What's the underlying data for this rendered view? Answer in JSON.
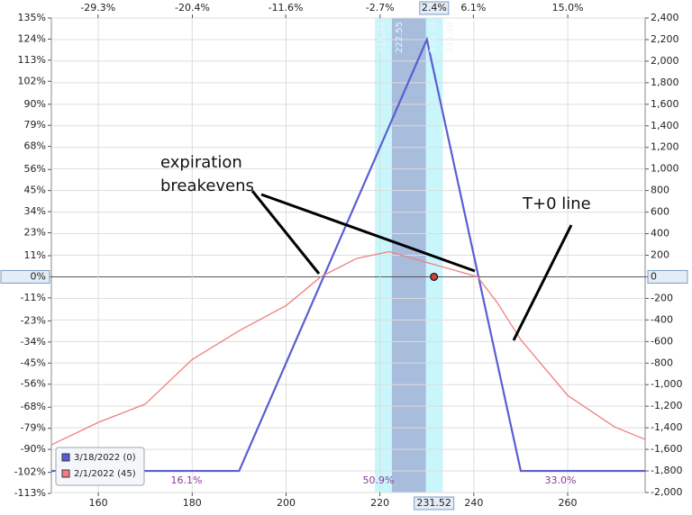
{
  "chart_data": {
    "type": "line",
    "xlim": [
      150,
      276.5
    ],
    "xticks": [
      160,
      180,
      200,
      220,
      240,
      260
    ],
    "x2lim": [
      -33.7,
      22.3
    ],
    "x2ticks": [
      {
        "value": -29.3,
        "label": "-29.3%"
      },
      {
        "value": -20.4,
        "label": "-20.4%"
      },
      {
        "value": -11.6,
        "label": "-11.6%"
      },
      {
        "value": -2.7,
        "label": "-2.7%"
      },
      {
        "value": 6.1,
        "label": "6.1%"
      },
      {
        "value": 15.0,
        "label": "15.0%"
      }
    ],
    "ylim": [
      -2000,
      2400
    ],
    "yticks": [
      {
        "value": 2400,
        "label": "2,400"
      },
      {
        "value": 2200,
        "label": "2,200"
      },
      {
        "value": 2000,
        "label": "2,000"
      },
      {
        "value": 1800,
        "label": "1,800"
      },
      {
        "value": 1600,
        "label": "1,600"
      },
      {
        "value": 1400,
        "label": "1,400"
      },
      {
        "value": 1200,
        "label": "1,200"
      },
      {
        "value": 1000,
        "label": "1,000"
      },
      800,
      600,
      400,
      200,
      0,
      -200,
      -400,
      -600,
      -800,
      {
        "value": -1000,
        "label": "-1,000"
      },
      {
        "value": -1200,
        "label": "-1,200"
      },
      {
        "value": -1400,
        "label": "-1,400"
      },
      {
        "value": -1600,
        "label": "-1,600"
      },
      {
        "value": -1800,
        "label": "-1,800"
      },
      {
        "value": -2000,
        "label": "-2,000"
      }
    ],
    "y2lim": [
      -112.5,
      135
    ],
    "y2ticks": [
      {
        "value": 135,
        "label": "135%"
      },
      {
        "value": 124,
        "label": "124%"
      },
      {
        "value": 113,
        "label": "113%"
      },
      {
        "value": 102,
        "label": "102%"
      },
      {
        "value": 90,
        "label": "90%"
      },
      {
        "value": 79,
        "label": "79%"
      },
      {
        "value": 68,
        "label": "68%"
      },
      {
        "value": 56,
        "label": "56%"
      },
      {
        "value": 45,
        "label": "45%"
      },
      {
        "value": 34,
        "label": "34%"
      },
      {
        "value": 23,
        "label": "23%"
      },
      {
        "value": 11,
        "label": "11%"
      },
      {
        "value": 0,
        "label": "0%"
      },
      {
        "value": -11,
        "label": "-11%"
      },
      {
        "value": -23,
        "label": "-23%"
      },
      {
        "value": -34,
        "label": "-34%"
      },
      {
        "value": -45,
        "label": "-45%"
      },
      {
        "value": -56,
        "label": "-56%"
      },
      {
        "value": -68,
        "label": "-68%"
      },
      {
        "value": -79,
        "label": "-79%"
      },
      {
        "value": -90,
        "label": "-90%"
      },
      {
        "value": -102,
        "label": "-102%"
      },
      {
        "value": -113,
        "label": "-113%"
      }
    ],
    "grid": true,
    "current_price": 231.52,
    "current_change": {
      "value": 2.4,
      "label": "2.4%"
    },
    "band_edges": [
      218.94,
      222.55,
      229.78,
      {
        "value": 233.4,
        "label": "233.40"
      }
    ],
    "band_colors": [
      "#c9f6fb",
      "#a8bcdc"
    ],
    "series": [
      {
        "name": "3/18/2022 (0)",
        "color": "#5a5ed2",
        "x": [
          150,
          190,
          230,
          250,
          276.5
        ],
        "values": [
          -1800,
          -1800,
          2200,
          -1800,
          -1800
        ]
      },
      {
        "name": "2/1/2022 (45)",
        "color": "#f07f7f",
        "x": [
          150,
          160,
          170,
          180,
          190,
          200,
          207.4,
          215,
          222,
          230,
          240.8,
          245,
          250,
          260,
          270,
          276.5
        ],
        "values": [
          -1558,
          -1350,
          -1180,
          -767,
          -500,
          -267,
          0,
          170,
          233,
          133,
          0,
          -240,
          -583,
          -1100,
          -1392,
          -1508
        ]
      }
    ],
    "legend": "bottom-left",
    "region_probabilities": {
      "values": [
        16.1,
        50.9,
        33.0
      ],
      "value_labels": [
        "16.1%",
        "50.9%",
        "33.0%"
      ]
    },
    "annotations": [
      "expiration breakevens",
      "T+0 line"
    ]
  }
}
